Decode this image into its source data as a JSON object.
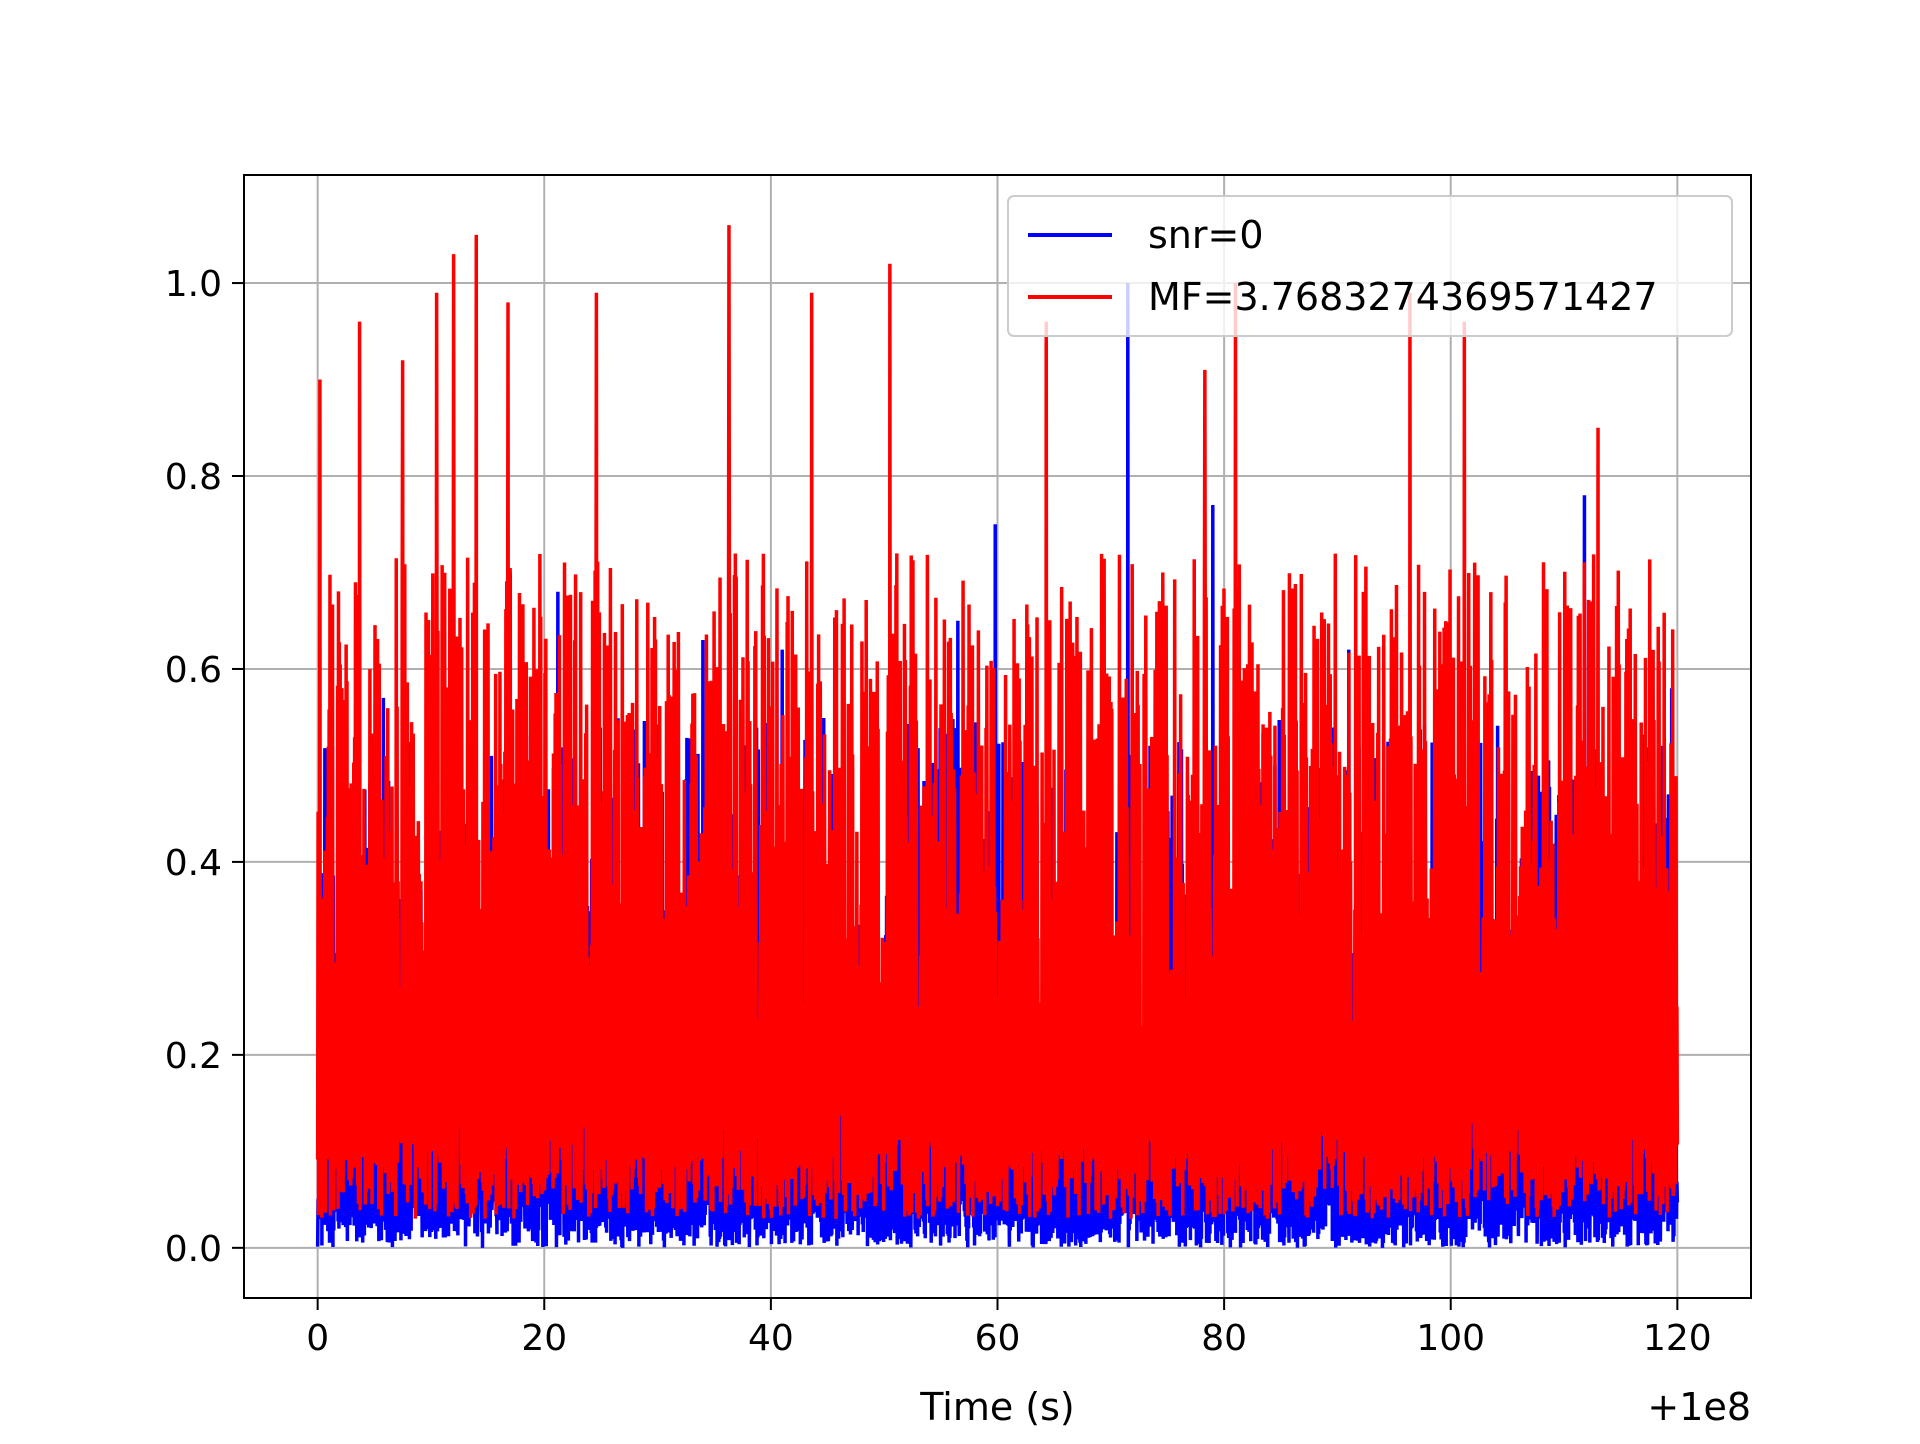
{
  "chart_data": {
    "type": "line",
    "title": "",
    "xlabel": "Time (s)",
    "ylabel": "",
    "x_offset_text": "+1e8",
    "xlim": [
      -6.5,
      126.5
    ],
    "ylim": [
      -0.052,
      1.112
    ],
    "x_ticks": [
      0,
      20,
      40,
      60,
      80,
      100,
      120
    ],
    "x_tick_labels": [
      "0",
      "20",
      "40",
      "60",
      "80",
      "100",
      "120"
    ],
    "y_ticks": [
      0.0,
      0.2,
      0.4,
      0.6,
      0.8,
      1.0
    ],
    "y_tick_labels": [
      "0.0",
      "0.2",
      "0.4",
      "0.6",
      "0.8",
      "1.0"
    ],
    "grid": true,
    "legend_position": "top-right",
    "x_range": [
      0,
      120
    ],
    "series": [
      {
        "name": "snr=0",
        "color": "#0000ff",
        "description": "dense noisy signal spanning x 0 to 120, baseline near 0.0, mostly 0.0–0.5",
        "peaks": [
          [
            1.0,
            0.48
          ],
          [
            5.8,
            0.57
          ],
          [
            17.0,
            0.7
          ],
          [
            21.2,
            0.68
          ],
          [
            34.0,
            0.63
          ],
          [
            41.0,
            0.62
          ],
          [
            56.5,
            0.65
          ],
          [
            59.8,
            0.75
          ],
          [
            71.5,
            1.0
          ],
          [
            79.0,
            0.77
          ],
          [
            91.0,
            0.62
          ],
          [
            111.8,
            0.78
          ],
          [
            119.5,
            0.58
          ]
        ]
      },
      {
        "name": "MF=3.7683274369571427",
        "color": "#ff0000",
        "description": "dense noisy signal spanning x 0 to 120, mostly 0.05–0.7",
        "peaks": [
          [
            0.2,
            0.9
          ],
          [
            3.7,
            0.96
          ],
          [
            7.5,
            0.92
          ],
          [
            10.5,
            0.99
          ],
          [
            12.0,
            1.03
          ],
          [
            14.0,
            1.05
          ],
          [
            16.8,
            0.98
          ],
          [
            24.6,
            0.99
          ],
          [
            36.3,
            1.06
          ],
          [
            43.6,
            0.99
          ],
          [
            50.5,
            1.02
          ],
          [
            64.3,
            0.96
          ],
          [
            78.3,
            0.91
          ],
          [
            81.0,
            1.0
          ],
          [
            96.4,
            0.99
          ],
          [
            101.2,
            0.96
          ],
          [
            113.0,
            0.85
          ]
        ]
      }
    ]
  }
}
